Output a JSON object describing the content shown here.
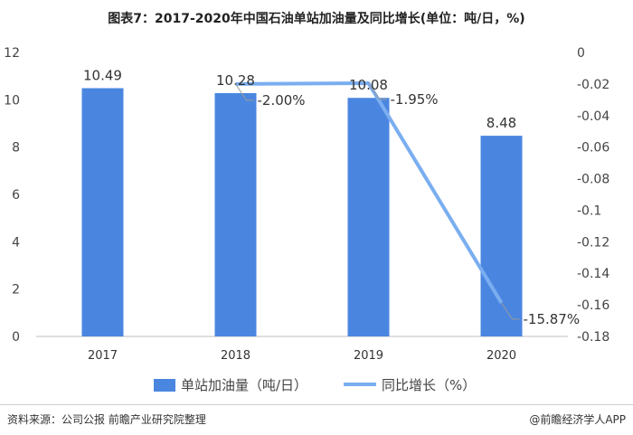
{
  "title": "图表7：2017-2020年中国石油单站加油量及同比增长(单位：吨/日，%)",
  "chart_data": {
    "type": "bar+line",
    "categories": [
      "2017",
      "2018",
      "2019",
      "2020"
    ],
    "series": [
      {
        "name": "单站加油量（吨/日）",
        "type": "bar",
        "axis": "left",
        "values": [
          10.49,
          10.28,
          10.08,
          8.48
        ],
        "labels": [
          "10.49",
          "10.28",
          "10.08",
          "8.48"
        ],
        "color": "#4a86e0"
      },
      {
        "name": "同比增长（%）",
        "type": "line",
        "axis": "right",
        "values": [
          null,
          -0.02,
          -0.0195,
          -0.1587
        ],
        "labels": [
          "",
          "-2.00%",
          "-1.95%",
          "-15.87%"
        ],
        "color": "#7aaef0"
      }
    ],
    "left_axis": {
      "ylim": [
        0,
        12
      ],
      "ticks": [
        "0",
        "2",
        "4",
        "6",
        "8",
        "10",
        "12"
      ]
    },
    "right_axis": {
      "ylim": [
        -0.18,
        0
      ],
      "ticks": [
        "-0.18",
        "-0.16",
        "-0.14",
        "-0.12",
        "-0.1",
        "-0.08",
        "-0.06",
        "-0.04",
        "-0.02",
        "0"
      ]
    },
    "grid": false,
    "legend": "bottom"
  },
  "footer": {
    "source": "资料来源：公司公报 前瞻产业研究院整理",
    "brand": "@前瞻经济学人APP"
  }
}
